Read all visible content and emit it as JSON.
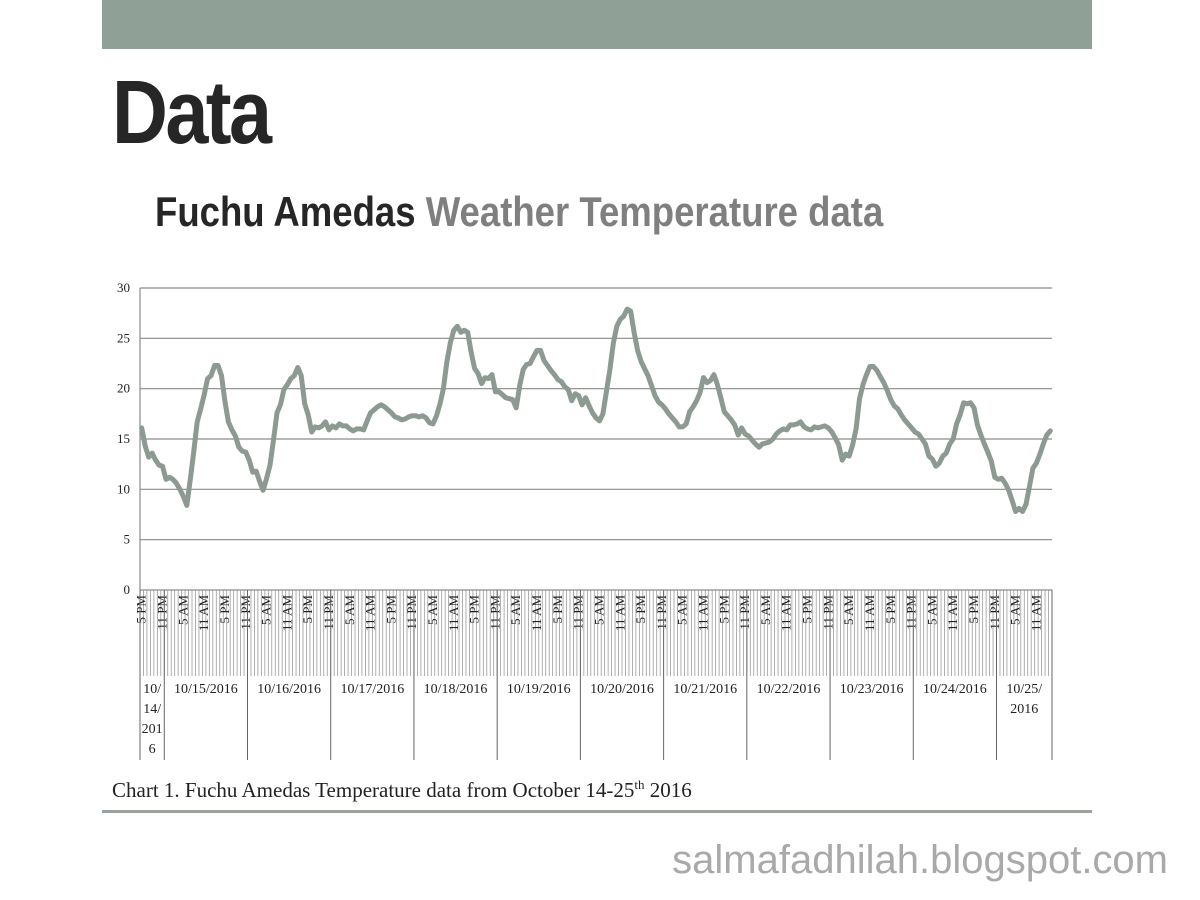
{
  "slide": {
    "title": "Data",
    "subtitle_part1": "Fuchu Amedas",
    "subtitle_part2": "Weather Temperature data",
    "caption_main": "Chart 1. Fuchu Amedas Temperature data from October 14-25",
    "caption_sup": "th",
    "caption_end": " 2016",
    "watermark": "salmafadhilah.blogspot.com",
    "colors": {
      "top_bar": "#8fa096",
      "line": "#8c9a92",
      "title": "#262626",
      "subtitle_grey": "#7f7f7f"
    }
  },
  "chart_data": {
    "type": "line",
    "title": "",
    "xlabel": "",
    "ylabel": "",
    "ylim": [
      0,
      30
    ],
    "yticks": [
      0,
      5,
      10,
      15,
      20,
      25,
      30
    ],
    "grid": true,
    "legend": "none",
    "start": "10/14/2016 5 PM",
    "interval_hours": 1,
    "time_labels_every_6h": [
      "5 PM",
      "11 PM",
      "5 AM",
      "11 AM",
      "5 PM",
      "11 PM",
      "5 AM",
      "11 AM",
      "5 PM",
      "11 PM",
      "5 AM",
      "11 AM",
      "5 PM",
      "11 PM",
      "5 AM",
      "11 AM",
      "5 PM",
      "11 PM",
      "5 AM",
      "11 AM",
      "5 PM",
      "11 PM",
      "5 AM",
      "11 AM",
      "5 PM",
      "11 PM",
      "5 AM",
      "11 AM",
      "5 PM",
      "11 PM",
      "5 AM",
      "11 AM",
      "5 PM",
      "11 PM",
      "5 AM",
      "11 AM",
      "5 PM",
      "11 PM",
      "5 AM",
      "11 AM",
      "5 PM",
      "11 PM",
      "5 AM",
      "11 AM"
    ],
    "date_labels": [
      "10/14/2016",
      "10/15/2016",
      "10/16/2016",
      "10/17/2016",
      "10/18/2016",
      "10/19/2016",
      "10/20/2016",
      "10/21/2016",
      "10/22/2016",
      "10/23/2016",
      "10/24/2016",
      "10/25/2016"
    ],
    "series": [
      {
        "values": [
          16.1,
          14.3,
          13.2,
          13.6,
          12.9,
          12.4,
          12.3,
          11.0,
          11.2,
          11.0,
          10.6,
          10.0,
          9.3,
          8.4,
          11.0,
          13.7,
          16.7,
          18.0,
          19.4,
          21.0,
          21.3,
          22.3,
          22.3,
          21.3,
          18.7,
          16.7,
          15.9,
          15.3,
          14.2,
          13.8,
          13.7,
          12.9,
          11.7,
          11.8,
          10.8,
          9.9,
          11.1,
          12.4,
          14.9,
          17.6,
          18.4,
          19.9,
          20.4,
          21.0,
          21.3,
          22.1,
          21.3,
          18.5,
          17.4,
          15.7,
          16.2,
          16.1,
          16.3,
          16.7,
          15.9,
          16.3,
          16.1,
          16.5,
          16.3,
          16.3,
          16.0,
          15.8,
          16.0,
          16.0,
          15.9,
          16.8,
          17.6,
          17.9,
          18.2,
          18.4,
          18.2,
          17.9,
          17.6,
          17.2,
          17.1,
          16.9,
          17.0,
          17.2,
          17.3,
          17.3,
          17.2,
          17.3,
          17.1,
          16.6,
          16.5,
          17.3,
          18.5,
          20.0,
          22.7,
          24.6,
          25.8,
          26.2,
          25.6,
          25.8,
          25.6,
          23.6,
          22.0,
          21.5,
          20.5,
          21.1,
          21.0,
          21.4,
          19.7,
          19.7,
          19.4,
          19.1,
          19.0,
          18.9,
          18.1,
          20.3,
          21.9,
          22.4,
          22.5,
          23.2,
          23.8,
          23.8,
          22.8,
          22.3,
          21.8,
          21.4,
          20.9,
          20.7,
          20.2,
          19.9,
          18.8,
          19.5,
          19.3,
          18.4,
          19.1,
          18.3,
          17.6,
          17.1,
          16.8,
          17.5,
          19.7,
          21.9,
          24.5,
          26.2,
          26.9,
          27.2,
          27.9,
          27.7,
          25.6,
          23.8,
          22.7,
          22.0,
          21.3,
          20.3,
          19.3,
          18.7,
          18.4,
          18.0,
          17.5,
          17.1,
          16.7,
          16.2,
          16.2,
          16.5,
          17.7,
          18.2,
          18.8,
          19.6,
          21.1,
          20.6,
          20.8,
          21.4,
          20.4,
          19.1,
          17.7,
          17.3,
          16.9,
          16.4,
          15.4,
          16.1,
          15.5,
          15.3,
          14.9,
          14.5,
          14.2,
          14.5,
          14.6,
          14.7,
          15.0,
          15.5,
          15.8,
          16.0,
          15.9,
          16.4,
          16.4,
          16.5,
          16.7,
          16.2,
          16.0,
          15.9,
          16.2,
          16.1,
          16.2,
          16.3,
          16.1,
          15.7,
          15.1,
          14.4,
          12.9,
          13.5,
          13.3,
          14.4,
          16.0,
          19.0,
          20.4,
          21.4,
          22.2,
          22.2,
          21.8,
          21.2,
          20.6,
          19.8,
          18.9,
          18.3,
          18.0,
          17.4,
          16.9,
          16.5,
          16.1,
          15.7,
          15.5,
          15.0,
          14.5,
          13.3,
          13.0,
          12.3,
          12.6,
          13.3,
          13.6,
          14.5,
          15.0,
          16.5,
          17.4,
          18.6,
          18.5,
          18.6,
          18.1,
          16.4,
          15.4,
          14.5,
          13.7,
          12.8,
          11.2,
          11.0,
          11.1,
          10.6,
          9.9,
          8.9,
          7.8,
          8.1,
          7.8,
          8.5,
          10.3,
          12.1,
          12.6,
          13.5,
          14.5,
          15.4,
          15.8
        ]
      }
    ]
  }
}
